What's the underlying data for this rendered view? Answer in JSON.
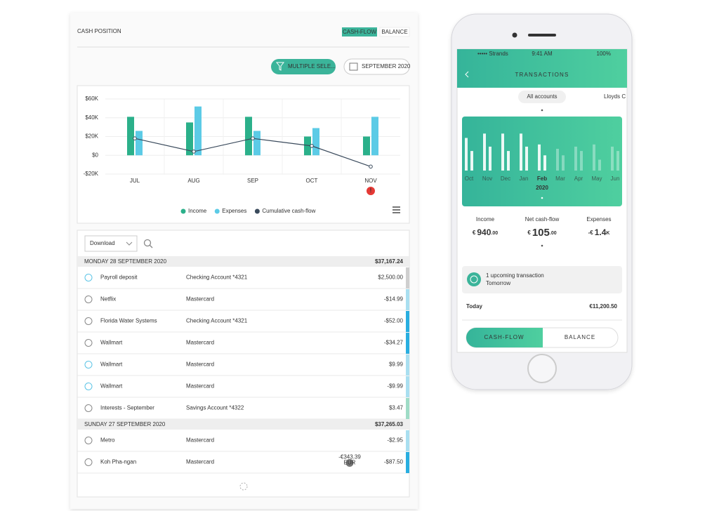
{
  "chart_data": {
    "type": "bar",
    "categories": [
      "JUL",
      "AUG",
      "SEP",
      "OCT",
      "NOV"
    ],
    "series": [
      {
        "name": "Income",
        "color": "#2bb08a",
        "values": [
          41000,
          35000,
          41000,
          20000,
          20000
        ]
      },
      {
        "name": "Expenses",
        "color": "#5ccbe6",
        "values": [
          26000,
          52000,
          26000,
          29000,
          41000
        ]
      },
      {
        "name": "Cumulative cash-flow",
        "type": "line",
        "color": "#3a4a5c",
        "values": [
          18000,
          4000,
          18000,
          10000,
          -12000
        ]
      }
    ],
    "ylim": [
      -20000,
      60000
    ],
    "yticks": [
      {
        "value": -20000,
        "label": "-$20K"
      },
      {
        "value": 0,
        "label": "$0"
      },
      {
        "value": 20000,
        "label": "$20K"
      },
      {
        "value": 40000,
        "label": "$40K"
      },
      {
        "value": 60000,
        "label": "$60K"
      }
    ],
    "grid": true,
    "legend": "bottom"
  },
  "desktop": {
    "title": "CASH POSITION",
    "toggle": [
      "CASH-FLOW",
      "BALANCE"
    ],
    "filter": "MULTIPLE SELE...",
    "date": "SEPTEMBER 2020",
    "alert": "!",
    "download": "Download",
    "days": [
      {
        "label": "MONDAY 28 SEPTEMBER 2020",
        "total": "$37,167.24",
        "rows": [
          {
            "name": "Payroll deposit",
            "account": "Checking Account *4321",
            "amount": "$2,500.00",
            "faded": true,
            "color": "#cfcfcf"
          },
          {
            "name": "Netflix",
            "account": "Mastercard",
            "amount": "-$14.99",
            "color": "#a9dff0"
          },
          {
            "name": "Florida Water Systems",
            "account": "Checking Account *4321",
            "amount": "-$52.00",
            "color": "#29aee0"
          },
          {
            "name": "Wallmart",
            "account": "Mastercard",
            "amount": "-$34.27",
            "color": "#29aee0"
          },
          {
            "name": "Wallmart",
            "account": "Mastercard",
            "amount": "$9.99",
            "faded": true,
            "color": "#a9dff0"
          },
          {
            "name": "Wallmart",
            "account": "Mastercard",
            "amount": "-$9.99",
            "faded": true,
            "color": "#a9dff0"
          },
          {
            "name": "Interests - September",
            "account": "Savings Account *4322",
            "amount": "$3.47",
            "color": "#9fdcc6"
          }
        ]
      },
      {
        "label": "SUNDAY 27 SEPTEMBER 2020",
        "total": "$37,265.03",
        "rows": [
          {
            "name": "Metro",
            "account": "Mastercard",
            "amount": "-$2.95",
            "color": "#a9dff0"
          },
          {
            "name": "Koh Pha-ngan",
            "account": "Mastercard",
            "amount": "-$87.50",
            "color": "#29aee0",
            "badge": "-€343.39",
            "badge_currency": "EUR"
          }
        ]
      }
    ]
  },
  "phone": {
    "carrier": "••••• Strands",
    "time": "9:41 AM",
    "battery": "100%",
    "title": "TRANSACTIONS",
    "accounts": [
      "All accounts",
      "Lloyds C"
    ],
    "chart": {
      "type": "bar",
      "categories": [
        "Oct",
        "Nov",
        "Dec",
        "Jan",
        "Feb",
        "Mar",
        "Apr",
        "May",
        "Jun"
      ],
      "year": "2020",
      "ylim": [
        0,
        100
      ],
      "series": [
        {
          "values": [
            75,
            85,
            85,
            85,
            60,
            50,
            55,
            60,
            55
          ]
        },
        {
          "values": [
            45,
            55,
            45,
            55,
            35,
            35,
            45,
            25,
            45
          ]
        }
      ]
    },
    "stats": [
      {
        "label": "Income",
        "currency": "€",
        "main": "940",
        "decimals": ".00"
      },
      {
        "label": "Net cash-flow",
        "currency": "€",
        "main": "105",
        "decimals": ".00"
      },
      {
        "label": "Expenses",
        "currency": "-€",
        "main": "1.4",
        "decimals": "K"
      }
    ],
    "upcoming": {
      "title": "1 upcoming transaction",
      "subtitle": "Tomorrow"
    },
    "today": {
      "label": "Today",
      "amount": "€11,200.50"
    },
    "toggle": [
      "CASH-FLOW",
      "BALANCE"
    ]
  }
}
